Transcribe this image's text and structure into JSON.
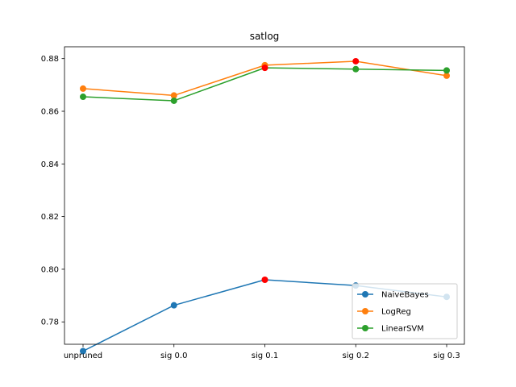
{
  "chart_data": {
    "type": "line",
    "title": "satlog",
    "xlabel": "",
    "ylabel": "",
    "categories": [
      "unpruned",
      "sig 0.0",
      "sig 0.1",
      "sig 0.2",
      "sig 0.3"
    ],
    "ylim": [
      0.7715,
      0.8845
    ],
    "yticks": [
      0.78,
      0.8,
      0.82,
      0.84,
      0.86,
      0.88
    ],
    "ytick_labels": [
      "0.78",
      "0.80",
      "0.82",
      "0.84",
      "0.86",
      "0.88"
    ],
    "grid": false,
    "legend": "lower-right",
    "series": [
      {
        "name": "NaiveBayes",
        "color": "#1f77b4",
        "values": [
          0.7689,
          0.7863,
          0.796,
          0.7938,
          0.7895
        ],
        "highlight_index": 2
      },
      {
        "name": "LogReg",
        "color": "#ff7f0e",
        "values": [
          0.8686,
          0.866,
          0.8775,
          0.879,
          0.8735
        ],
        "highlight_index": 3
      },
      {
        "name": "LinearSVM",
        "color": "#2ca02c",
        "values": [
          0.8655,
          0.864,
          0.8765,
          0.876,
          0.8755
        ],
        "highlight_index": 2
      }
    ],
    "highlight_color": "#ff0000"
  }
}
